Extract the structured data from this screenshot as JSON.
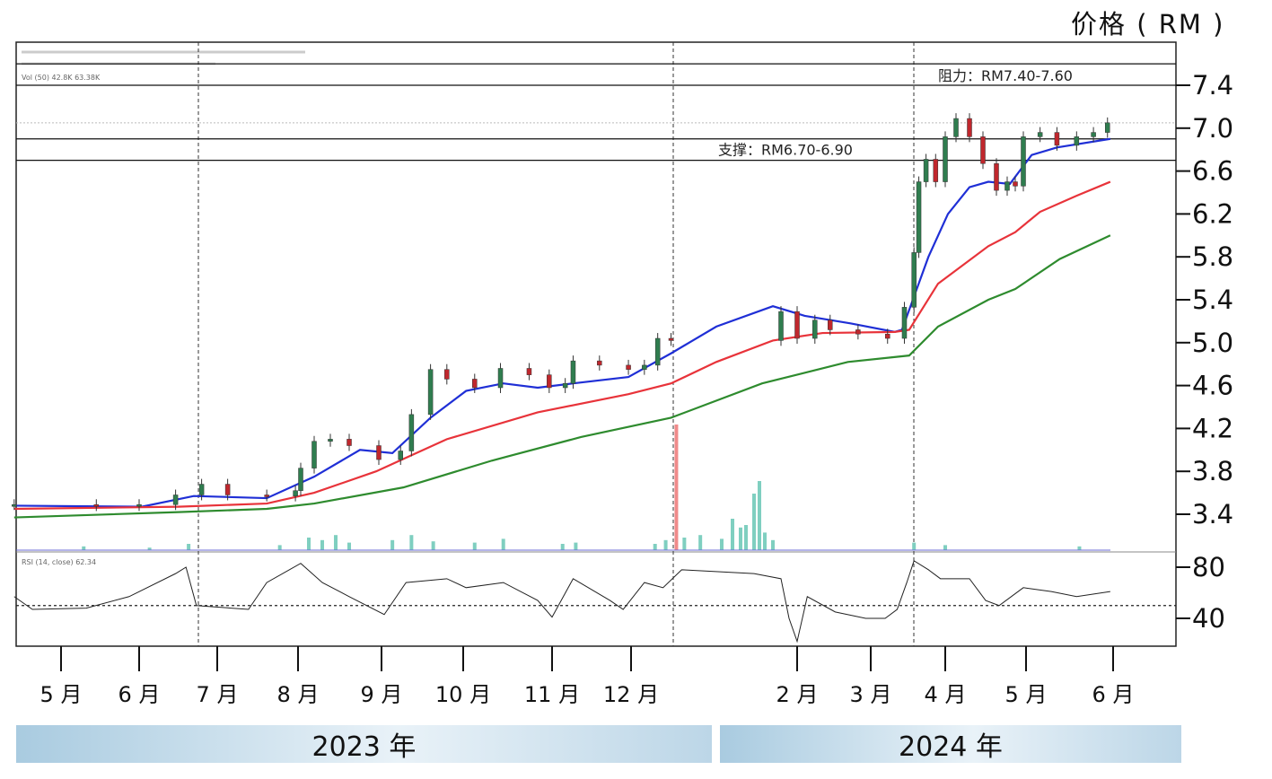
{
  "chart_data": {
    "type": "candlestick-line",
    "ylabel": "价格 ( RM )",
    "ylim": [
      3.2,
      7.6
    ],
    "yticks": [
      "7.4",
      "7.0",
      "6.6",
      "6.2",
      "5.8",
      "5.4",
      "5.0",
      "4.6",
      "4.2",
      "3.8",
      "3.4"
    ],
    "xticks": [
      {
        "label": "5 月",
        "date": "2023-05-01"
      },
      {
        "label": "6 月",
        "date": "2023-06-01"
      },
      {
        "label": "7 月",
        "date": "2023-07-01"
      },
      {
        "label": "8 月",
        "date": "2023-08-01"
      },
      {
        "label": "9 月",
        "date": "2023-09-01"
      },
      {
        "label": "10 月",
        "date": "2023-10-01"
      },
      {
        "label": "11 月",
        "date": "2023-11-01"
      },
      {
        "label": "12 月",
        "date": "2023-12-01"
      },
      {
        "label": "2 月",
        "date": "2024-02-01"
      },
      {
        "label": "3 月",
        "date": "2024-03-01"
      },
      {
        "label": "4 月",
        "date": "2024-04-01"
      },
      {
        "label": "5 月",
        "date": "2024-05-01"
      },
      {
        "label": "6 月",
        "date": "2024-06-01"
      }
    ],
    "years": [
      "2023 年",
      "2024 年"
    ],
    "legend_lines": [
      "Vol (50)  42.8K  63.38K",
      "RSI (14, close) 62.34"
    ],
    "annotations": [
      {
        "text": "阻力：RM7.40-7.60",
        "range": [
          7.4,
          7.6
        ]
      },
      {
        "text": "支撑：RM6.70-6.90",
        "range": [
          6.7,
          6.9
        ]
      }
    ],
    "price": [
      [
        "2023-04-13",
        3.49
      ],
      [
        "2023-05-15",
        3.48
      ],
      [
        "2023-06-01",
        3.49
      ],
      [
        "2023-06-15",
        3.58
      ],
      [
        "2023-06-25",
        3.68
      ],
      [
        "2023-07-05",
        3.58
      ],
      [
        "2023-07-20",
        3.57
      ],
      [
        "2023-07-31",
        3.62
      ],
      [
        "2023-08-02",
        3.83
      ],
      [
        "2023-08-07",
        4.08
      ],
      [
        "2023-08-13",
        4.1
      ],
      [
        "2023-08-20",
        4.04
      ],
      [
        "2023-08-31",
        3.91
      ],
      [
        "2023-09-08",
        3.99
      ],
      [
        "2023-09-12",
        4.33
      ],
      [
        "2023-09-19",
        4.75
      ],
      [
        "2023-09-25",
        4.66
      ],
      [
        "2023-10-05",
        4.58
      ],
      [
        "2023-10-14",
        4.76
      ],
      [
        "2023-10-24",
        4.7
      ],
      [
        "2023-10-31",
        4.58
      ],
      [
        "2023-11-06",
        4.62
      ],
      [
        "2023-11-09",
        4.83
      ],
      [
        "2023-11-19",
        4.79
      ],
      [
        "2023-11-30",
        4.75
      ],
      [
        "2023-12-06",
        4.79
      ],
      [
        "2023-12-11",
        5.04
      ],
      [
        "2023-12-16",
        5.02
      ],
      [
        "2024-01-26",
        5.29
      ],
      [
        "2024-02-01",
        5.04
      ],
      [
        "2024-02-08",
        5.21
      ],
      [
        "2024-02-14",
        5.12
      ],
      [
        "2024-02-25",
        5.08
      ],
      [
        "2024-03-08",
        5.04
      ],
      [
        "2024-03-15",
        5.33
      ],
      [
        "2024-03-19",
        5.84
      ],
      [
        "2024-03-21",
        6.5
      ],
      [
        "2024-03-24",
        6.71
      ],
      [
        "2024-03-28",
        6.5
      ],
      [
        "2024-04-01",
        6.92
      ],
      [
        "2024-04-05",
        7.09
      ],
      [
        "2024-04-10",
        6.92
      ],
      [
        "2024-04-15",
        6.67
      ],
      [
        "2024-04-20",
        6.42
      ],
      [
        "2024-04-24",
        6.5
      ],
      [
        "2024-04-27",
        6.46
      ],
      [
        "2024-04-30",
        6.92
      ],
      [
        "2024-05-06",
        6.96
      ],
      [
        "2024-05-12",
        6.84
      ],
      [
        "2024-05-19",
        6.92
      ],
      [
        "2024-05-25",
        6.96
      ],
      [
        "2024-05-30",
        7.05
      ]
    ],
    "series": [
      {
        "color": "#1f2fd6",
        "values": [
          [
            "2023-04-13",
            3.48
          ],
          [
            "2023-06-02",
            3.47
          ],
          [
            "2023-06-22",
            3.57
          ],
          [
            "2023-07-20",
            3.55
          ],
          [
            "2023-08-07",
            3.75
          ],
          [
            "2023-08-24",
            4.0
          ],
          [
            "2023-09-05",
            3.97
          ],
          [
            "2023-09-19",
            4.3
          ],
          [
            "2023-10-02",
            4.55
          ],
          [
            "2023-10-15",
            4.62
          ],
          [
            "2023-10-27",
            4.58
          ],
          [
            "2023-11-09",
            4.62
          ],
          [
            "2023-11-30",
            4.68
          ],
          [
            "2023-12-16",
            4.9
          ],
          [
            "2024-01-02",
            5.15
          ],
          [
            "2024-01-23",
            5.34
          ],
          [
            "2024-02-04",
            5.25
          ],
          [
            "2024-02-22",
            5.18
          ],
          [
            "2024-03-11",
            5.1
          ],
          [
            "2024-03-14",
            5.12
          ],
          [
            "2024-03-25",
            5.8
          ],
          [
            "2024-04-02",
            6.2
          ],
          [
            "2024-04-10",
            6.45
          ],
          [
            "2024-04-17",
            6.5
          ],
          [
            "2024-04-25",
            6.48
          ],
          [
            "2024-05-03",
            6.75
          ],
          [
            "2024-05-12",
            6.82
          ],
          [
            "2024-05-31",
            6.9
          ]
        ]
      },
      {
        "color": "#e8333a",
        "values": [
          [
            "2023-04-13",
            3.45
          ],
          [
            "2023-06-16",
            3.47
          ],
          [
            "2023-07-20",
            3.5
          ],
          [
            "2023-08-07",
            3.6
          ],
          [
            "2023-08-30",
            3.8
          ],
          [
            "2023-09-25",
            4.1
          ],
          [
            "2023-10-27",
            4.35
          ],
          [
            "2023-11-30",
            4.52
          ],
          [
            "2023-12-16",
            4.62
          ],
          [
            "2024-01-02",
            4.82
          ],
          [
            "2024-01-23",
            5.02
          ],
          [
            "2024-02-11",
            5.09
          ],
          [
            "2024-03-11",
            5.1
          ],
          [
            "2024-03-17",
            5.12
          ],
          [
            "2024-03-29",
            5.55
          ],
          [
            "2024-04-17",
            5.9
          ],
          [
            "2024-04-27",
            6.03
          ],
          [
            "2024-05-06",
            6.22
          ],
          [
            "2024-05-19",
            6.37
          ],
          [
            "2024-05-31",
            6.5
          ]
        ]
      },
      {
        "color": "#2e8b2e",
        "values": [
          [
            "2023-04-13",
            3.37
          ],
          [
            "2023-06-16",
            3.42
          ],
          [
            "2023-07-20",
            3.45
          ],
          [
            "2023-08-07",
            3.5
          ],
          [
            "2023-09-09",
            3.65
          ],
          [
            "2023-10-11",
            3.9
          ],
          [
            "2023-11-12",
            4.12
          ],
          [
            "2023-12-16",
            4.3
          ],
          [
            "2024-01-19",
            4.62
          ],
          [
            "2024-02-21",
            4.82
          ],
          [
            "2024-03-17",
            4.88
          ],
          [
            "2024-03-29",
            5.15
          ],
          [
            "2024-04-17",
            5.4
          ],
          [
            "2024-04-27",
            5.5
          ],
          [
            "2024-05-13",
            5.78
          ],
          [
            "2024-05-31",
            6.0
          ]
        ]
      }
    ],
    "volume": [
      [
        "2023-05-10",
        3
      ],
      [
        "2023-06-05",
        2
      ],
      [
        "2023-06-20",
        5
      ],
      [
        "2023-07-25",
        4
      ],
      [
        "2023-08-05",
        10
      ],
      [
        "2023-08-10",
        8
      ],
      [
        "2023-08-15",
        12
      ],
      [
        "2023-08-20",
        6
      ],
      [
        "2023-09-05",
        8
      ],
      [
        "2023-09-12",
        12
      ],
      [
        "2023-09-20",
        7
      ],
      [
        "2023-10-05",
        6
      ],
      [
        "2023-10-15",
        9
      ],
      [
        "2023-11-05",
        5
      ],
      [
        "2023-11-10",
        6
      ],
      [
        "2023-12-10",
        5
      ],
      [
        "2023-12-14",
        8
      ],
      [
        "2023-12-18",
        100
      ],
      [
        "2023-12-21",
        10
      ],
      [
        "2023-12-27",
        12
      ],
      [
        "2024-01-04",
        9
      ],
      [
        "2024-01-08",
        25
      ],
      [
        "2024-01-11",
        18
      ],
      [
        "2024-01-13",
        20
      ],
      [
        "2024-01-16",
        45
      ],
      [
        "2024-01-18",
        55
      ],
      [
        "2024-01-20",
        14
      ],
      [
        "2024-01-23",
        8
      ],
      [
        "2024-03-19",
        6
      ],
      [
        "2024-04-01",
        4
      ],
      [
        "2024-05-20",
        3
      ]
    ],
    "rsi_levels": [
      80,
      40
    ],
    "rsi_midline": 50,
    "rsi": [
      [
        "2023-04-13",
        57
      ],
      [
        "2023-04-20",
        47
      ],
      [
        "2023-05-11",
        48
      ],
      [
        "2023-05-28",
        57
      ],
      [
        "2023-06-15",
        75
      ],
      [
        "2023-06-19",
        80
      ],
      [
        "2023-06-23",
        50
      ],
      [
        "2023-07-13",
        47
      ],
      [
        "2023-07-20",
        68
      ],
      [
        "2023-08-02",
        83
      ],
      [
        "2023-08-10",
        68
      ],
      [
        "2023-08-20",
        57
      ],
      [
        "2023-09-02",
        43
      ],
      [
        "2023-09-10",
        68
      ],
      [
        "2023-09-25",
        71
      ],
      [
        "2023-10-02",
        64
      ],
      [
        "2023-10-15",
        68
      ],
      [
        "2023-10-27",
        54
      ],
      [
        "2023-11-01",
        41
      ],
      [
        "2023-11-09",
        71
      ],
      [
        "2023-11-23",
        54
      ],
      [
        "2023-11-28",
        47
      ],
      [
        "2023-12-06",
        68
      ],
      [
        "2023-12-13",
        64
      ],
      [
        "2023-12-20",
        78
      ],
      [
        "2024-01-16",
        75
      ],
      [
        "2024-01-26",
        71
      ],
      [
        "2024-01-29",
        40
      ],
      [
        "2024-02-01",
        22
      ],
      [
        "2024-02-05",
        57
      ],
      [
        "2024-02-16",
        45
      ],
      [
        "2024-02-28",
        40
      ],
      [
        "2024-03-07",
        40
      ],
      [
        "2024-03-12",
        47
      ],
      [
        "2024-03-16",
        68
      ],
      [
        "2024-03-19",
        85
      ],
      [
        "2024-03-25",
        78
      ],
      [
        "2024-03-30",
        71
      ],
      [
        "2024-04-10",
        71
      ],
      [
        "2024-04-16",
        54
      ],
      [
        "2024-04-21",
        50
      ],
      [
        "2024-04-30",
        64
      ],
      [
        "2024-05-10",
        61
      ],
      [
        "2024-05-19",
        57
      ],
      [
        "2024-05-31",
        61
      ]
    ]
  }
}
